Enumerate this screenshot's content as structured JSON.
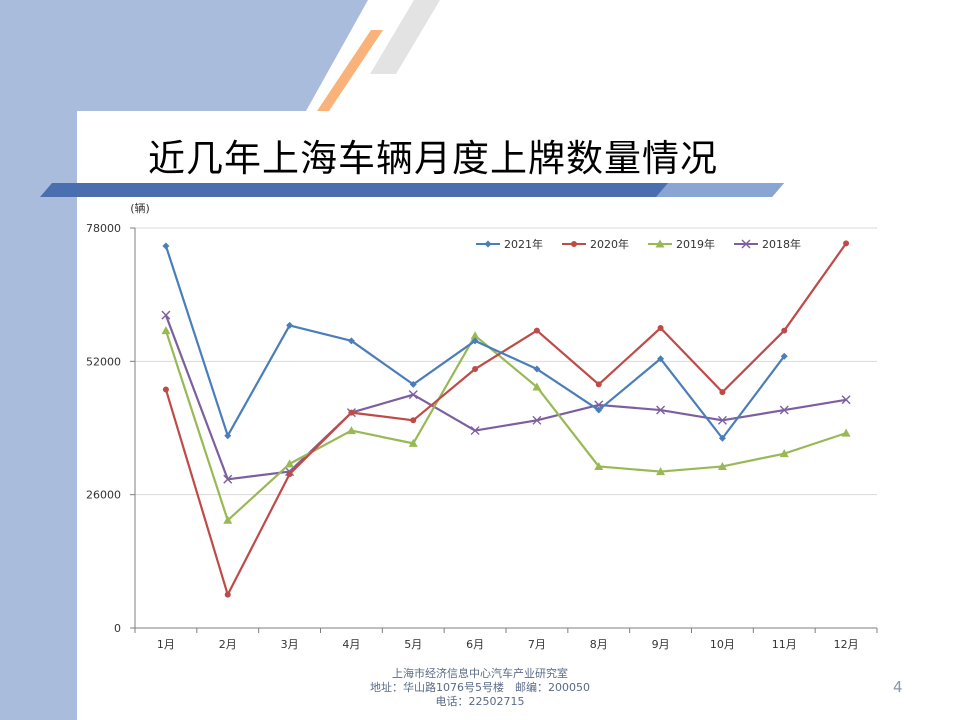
{
  "slide": {
    "title": "近几年上海车辆月度上牌数量情况",
    "page_number": "4",
    "footer": {
      "line1": "上海市经济信息中心汽车产业研究室",
      "line2": "地址：华山路1076号5号楼　邮编：200050",
      "line3": "电话：22502715"
    }
  },
  "colors": {
    "background_panel": "#a9bcdc",
    "title_bar_dark": "#4a6fb0",
    "title_bar_light": "#89a5d4",
    "accent_orange": "#f8b27a",
    "accent_gray": "#e3e3e3"
  },
  "chart_data": {
    "type": "line",
    "unit_label": "(辆)",
    "categories": [
      "1月",
      "2月",
      "3月",
      "4月",
      "5月",
      "6月",
      "7月",
      "8月",
      "9月",
      "10月",
      "11月",
      "12月"
    ],
    "ylim": [
      0,
      78000
    ],
    "yticks": [
      "0",
      "26000",
      "52000",
      "78000"
    ],
    "grid": true,
    "legend_position": "top-right",
    "series": [
      {
        "name": "2021年",
        "color": "#4a7ebb",
        "marker": "diamond",
        "values": [
          74500,
          37500,
          59000,
          56000,
          47500,
          56000,
          50500,
          42500,
          52500,
          37000,
          53000,
          null
        ]
      },
      {
        "name": "2020年",
        "color": "#be4b48",
        "marker": "circle",
        "values": [
          46500,
          6500,
          30000,
          42000,
          40500,
          50500,
          58000,
          47500,
          58500,
          46000,
          58000,
          75000
        ]
      },
      {
        "name": "2019年",
        "color": "#98b954",
        "marker": "triangle",
        "values": [
          58000,
          21000,
          32000,
          38500,
          36000,
          57000,
          47000,
          31500,
          30500,
          31500,
          34000,
          38000
        ]
      },
      {
        "name": "2018年",
        "color": "#7d5fa0",
        "marker": "x",
        "values": [
          61000,
          29000,
          30500,
          42000,
          45500,
          38500,
          40500,
          43500,
          42500,
          40500,
          42500,
          44500
        ]
      }
    ]
  }
}
